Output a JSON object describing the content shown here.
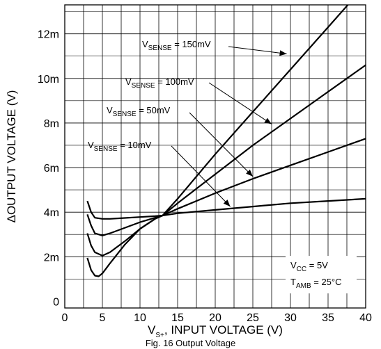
{
  "chart_data": {
    "type": "line",
    "title": "",
    "xlabel": {
      "main": "V",
      "sub": "S+",
      "rest": ", INPUT VOLTAGE (V)"
    },
    "ylabel": "ΔOUTPUT VOLTAGE (V)",
    "xlim": [
      0,
      40
    ],
    "ylim": [
      -0.3,
      13.3
    ],
    "x_ticks": [
      0,
      5,
      10,
      15,
      20,
      25,
      30,
      35,
      40
    ],
    "x_tick_labels": [
      "0",
      "5",
      "10",
      "15",
      "20",
      "25",
      "30",
      "35",
      "40"
    ],
    "y_ticks": [
      0,
      2,
      4,
      6,
      8,
      10,
      12
    ],
    "y_tick_labels": [
      "0",
      "2m",
      "4m",
      "6m",
      "8m",
      "10m",
      "12m"
    ],
    "grid": true,
    "series": [
      {
        "name": "V_SENSE = 150mV",
        "label": {
          "main": "V",
          "sub": "SENSE",
          "rest": " = 150mV"
        },
        "x": [
          3,
          3.5,
          4,
          5,
          6,
          8,
          10,
          12,
          13,
          15,
          20,
          25,
          30,
          35,
          40
        ],
        "y": [
          4.5,
          4.0,
          3.75,
          3.7,
          3.7,
          3.74,
          3.78,
          3.82,
          3.85,
          4.6,
          6.6,
          8.5,
          10.4,
          12.3,
          14.2
        ]
      },
      {
        "name": "V_SENSE = 100mV",
        "label": {
          "main": "V",
          "sub": "SENSE",
          "rest": " = 100mV"
        },
        "x": [
          3,
          3.5,
          4,
          5,
          6,
          8,
          10,
          12,
          13,
          15,
          20,
          25,
          30,
          35,
          40
        ],
        "y": [
          3.9,
          3.4,
          3.05,
          2.95,
          3.05,
          3.3,
          3.55,
          3.75,
          3.85,
          4.4,
          5.7,
          7.0,
          8.2,
          9.4,
          10.6
        ]
      },
      {
        "name": "V_SENSE = 50mV",
        "label": {
          "main": "V",
          "sub": "SENSE",
          "rest": " = 50mV"
        },
        "x": [
          3,
          3.5,
          4,
          5,
          6,
          8,
          10,
          12,
          13,
          15,
          20,
          25,
          30,
          35,
          40
        ],
        "y": [
          3.05,
          2.5,
          2.2,
          2.05,
          2.2,
          2.7,
          3.25,
          3.7,
          3.85,
          4.15,
          4.85,
          5.5,
          6.1,
          6.7,
          7.3
        ]
      },
      {
        "name": "V_SENSE = 10mV",
        "label": {
          "main": "V",
          "sub": "SENSE",
          "rest": " = 10mV"
        },
        "x": [
          3,
          3.5,
          4,
          4.5,
          5,
          6,
          8,
          10,
          12,
          13,
          15,
          20,
          25,
          30,
          35,
          40
        ],
        "y": [
          1.95,
          1.4,
          1.15,
          1.12,
          1.25,
          1.7,
          2.55,
          3.25,
          3.7,
          3.85,
          3.95,
          4.1,
          4.25,
          4.4,
          4.5,
          4.6
        ]
      }
    ],
    "conditions": [
      {
        "main": "V",
        "sub": "CC",
        "rest": " = 5V"
      },
      {
        "main": "T",
        "sub": "AMB",
        "rest": " = 25°C"
      }
    ]
  },
  "caption": "Fig. 16 Output Voltage"
}
